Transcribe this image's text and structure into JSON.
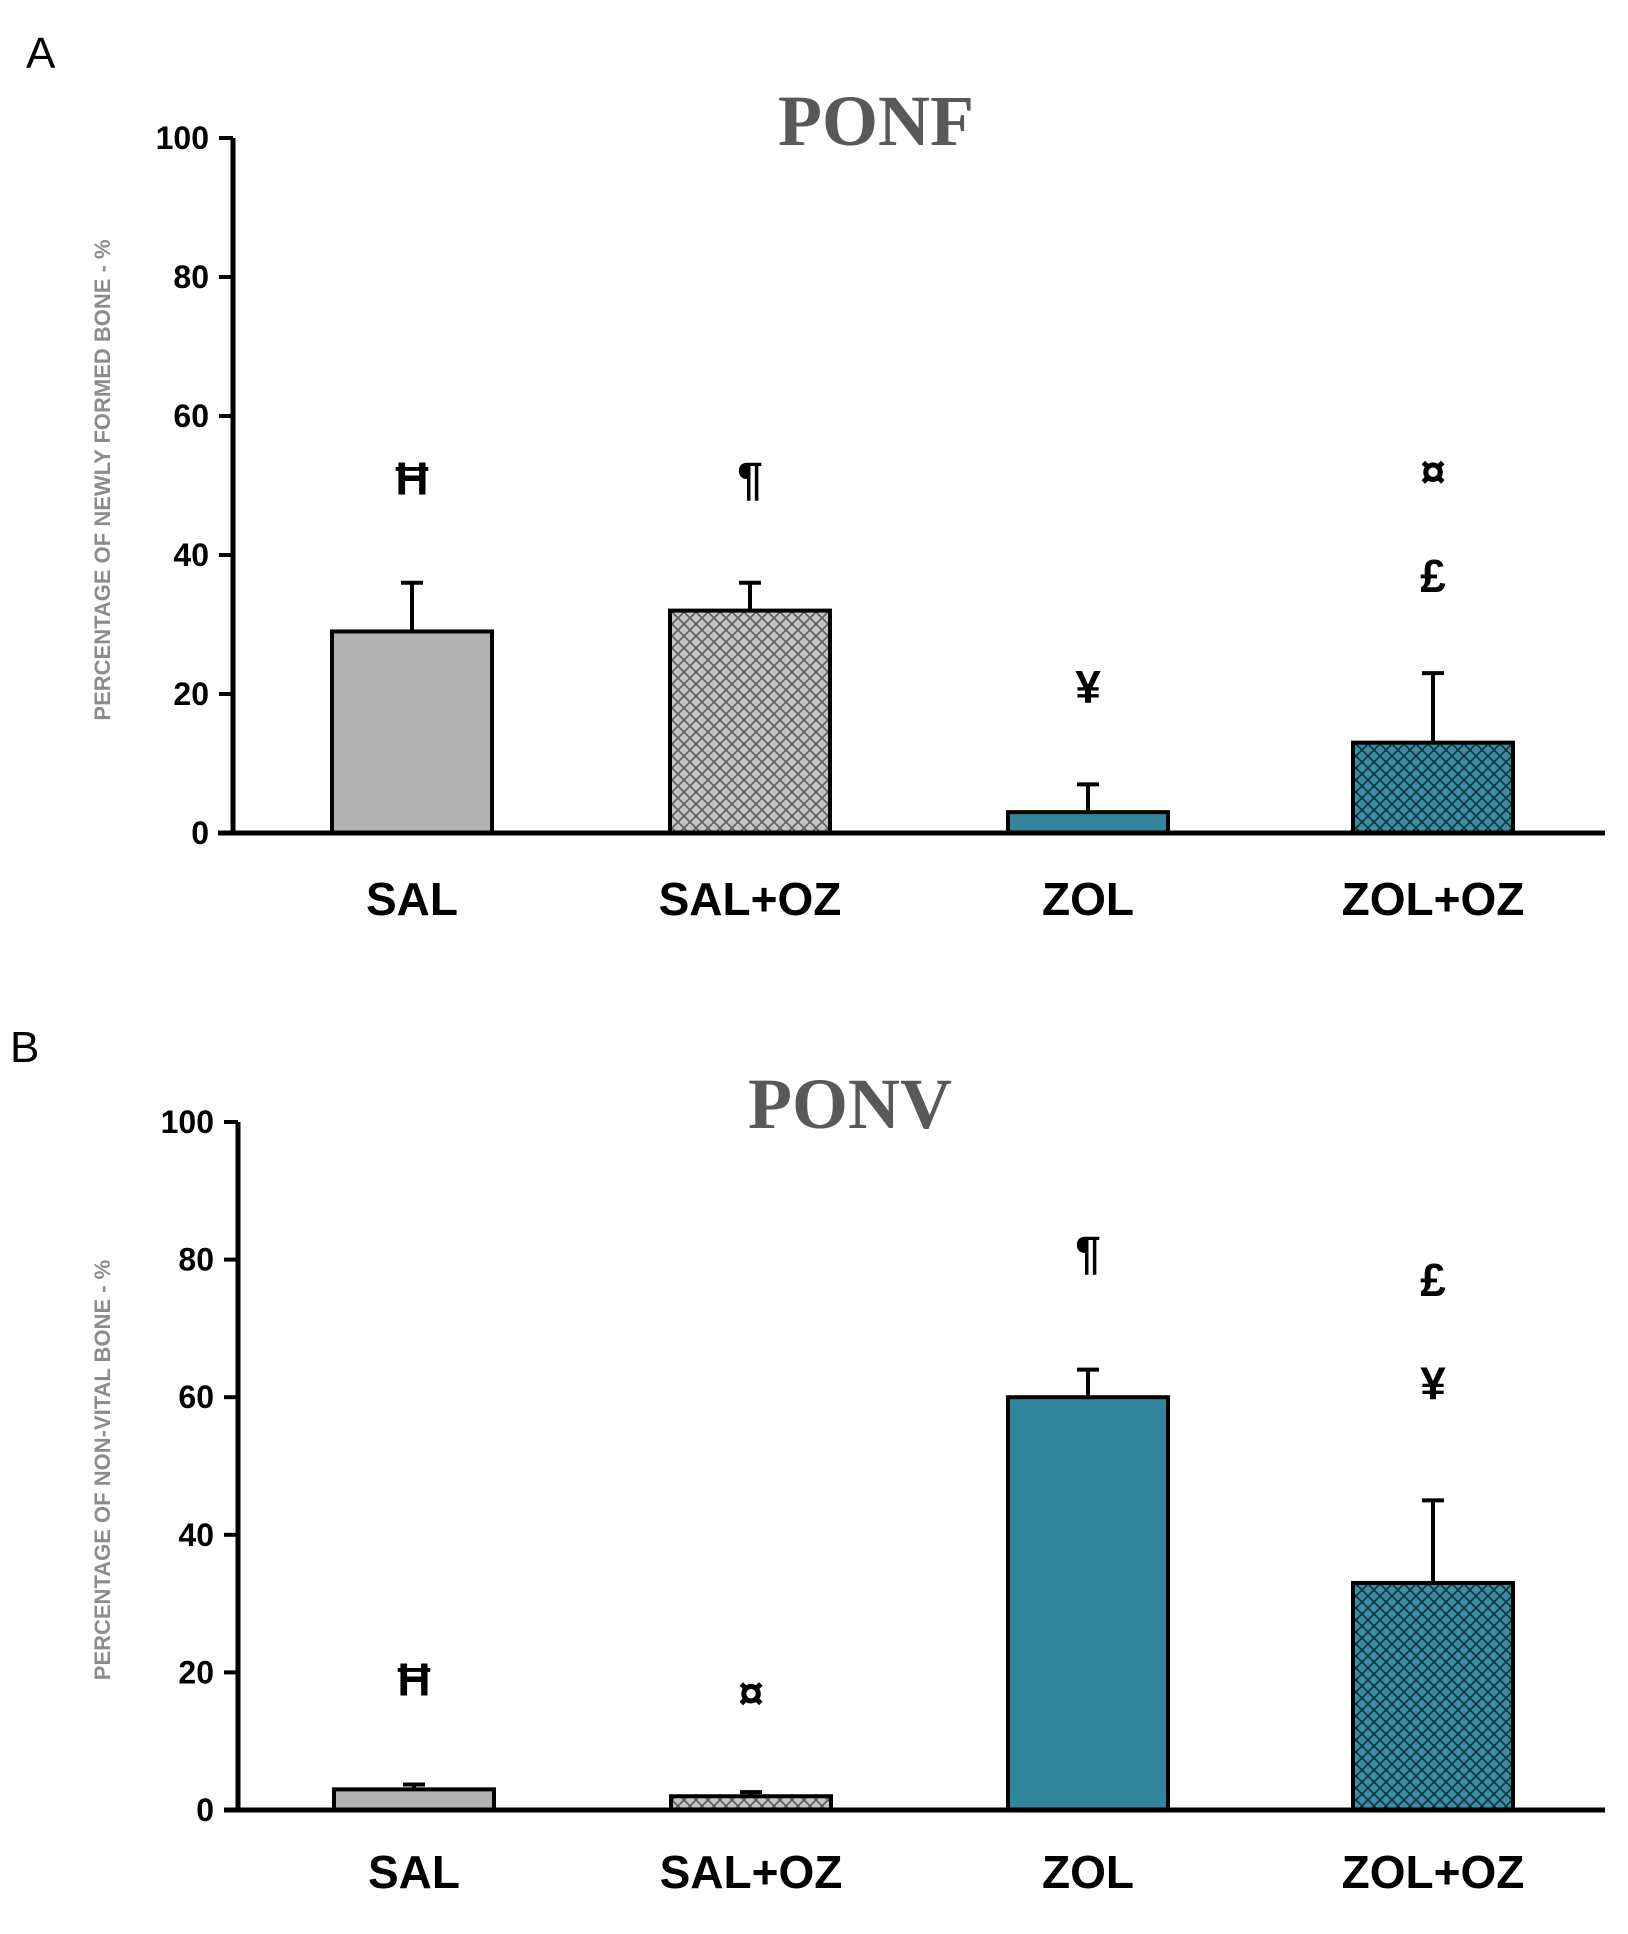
{
  "chart_data": [
    {
      "panel": "A",
      "type": "bar",
      "title": "PONF",
      "xlabel": "",
      "ylabel": "PERCENTAGE OF NEWLY FORMED BONE - %",
      "ylim": [
        0,
        100
      ],
      "yticks": [
        "0",
        "20",
        "40",
        "60",
        "80",
        "100"
      ],
      "categories": [
        "SAL",
        "SAL+OZ",
        "ZOL",
        "ZOL+OZ"
      ],
      "values": [
        29,
        32,
        3,
        13
      ],
      "errors": [
        7,
        4,
        4,
        10
      ],
      "annotations": [
        {
          "category": "SAL",
          "marks": [
            {
              "symbol": "Ħ",
              "y": 51
            }
          ]
        },
        {
          "category": "SAL+OZ",
          "marks": [
            {
              "symbol": "¶",
              "y": 51
            }
          ]
        },
        {
          "category": "ZOL",
          "marks": [
            {
              "symbol": "¥",
              "y": 21
            }
          ]
        },
        {
          "category": "ZOL+OZ",
          "marks": [
            {
              "symbol": "¤",
              "y": 52
            },
            {
              "symbol": "£",
              "y": 37
            }
          ]
        }
      ]
    },
    {
      "panel": "B",
      "type": "bar",
      "title": "PONV",
      "xlabel": "",
      "ylabel": "PERCENTAGE OF NON-VITAL BONE - %",
      "ylim": [
        0,
        100
      ],
      "yticks": [
        "0",
        "20",
        "40",
        "60",
        "80",
        "100"
      ],
      "categories": [
        "SAL",
        "SAL+OZ",
        "ZOL",
        "ZOL+OZ"
      ],
      "values": [
        3,
        2,
        60,
        33
      ],
      "errors": [
        0.7,
        0.6,
        4,
        12
      ],
      "annotations": [
        {
          "category": "SAL",
          "marks": [
            {
              "symbol": "Ħ",
              "y": 19
            }
          ]
        },
        {
          "category": "SAL+OZ",
          "marks": [
            {
              "symbol": "¤",
              "y": 17
            }
          ]
        },
        {
          "category": "ZOL",
          "marks": [
            {
              "symbol": "¶",
              "y": 81
            }
          ]
        },
        {
          "category": "ZOL+OZ",
          "marks": [
            {
              "symbol": "£",
              "y": 77
            },
            {
              "symbol": "¥",
              "y": 62
            }
          ]
        }
      ]
    }
  ],
  "colors": {
    "gray_bar": "#b3b3b3",
    "teal_bar": "#31869b",
    "axis": "#000000",
    "title": "#595959",
    "ylabel": "#8c8c8c"
  },
  "patterns": [
    "solid-gray",
    "crosshatch-gray",
    "solid-teal",
    "crosshatch-teal"
  ]
}
